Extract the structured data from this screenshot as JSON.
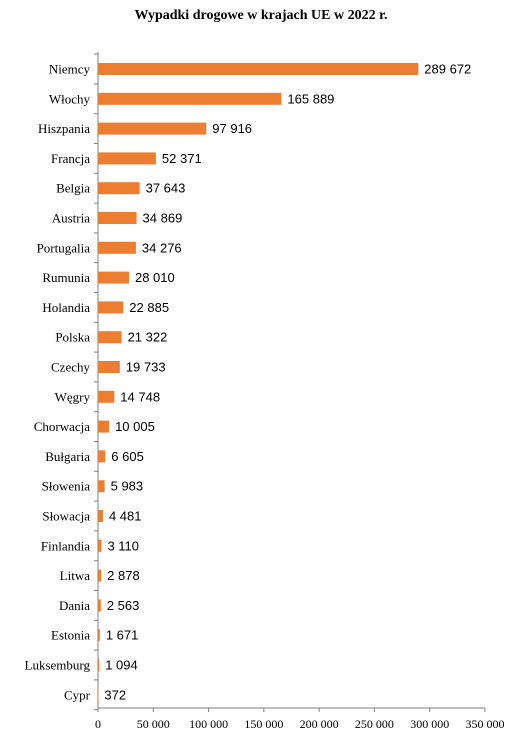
{
  "chart_data": {
    "type": "bar",
    "orientation": "horizontal",
    "title": "Wypadki drogowe w krajach UE w 2022 r.",
    "xlabel": "",
    "ylabel": "",
    "xlim": [
      0,
      350000
    ],
    "x_ticks": [
      0,
      50000,
      100000,
      150000,
      200000,
      250000,
      300000,
      350000
    ],
    "x_tick_labels": [
      "0",
      "50 000",
      "100 000",
      "150 000",
      "200 000",
      "250 000",
      "300 000",
      "350 000"
    ],
    "grid": false,
    "legend": "none",
    "bar_color": "#ED7D31",
    "categories": [
      "Niemcy",
      "Włochy",
      "Hiszpania",
      "Francja",
      "Belgia",
      "Austria",
      "Portugalia",
      "Rumunia",
      "Holandia",
      "Polska",
      "Czechy",
      "Węgry",
      "Chorwacja",
      "Bułgaria",
      "Słowenia",
      "Słowacja",
      "Finlandia",
      "Litwa",
      "Dania",
      "Estonia",
      "Luksemburg",
      "Cypr"
    ],
    "values": [
      289672,
      165889,
      97916,
      52371,
      37643,
      34869,
      34276,
      28010,
      22885,
      21322,
      19733,
      14748,
      10005,
      6605,
      5983,
      4481,
      3110,
      2878,
      2563,
      1671,
      1094,
      372
    ],
    "value_labels": [
      "289 672",
      "165 889",
      "97 916",
      "52 371",
      "37 643",
      "34 869",
      "34 276",
      "28 010",
      "22 885",
      "21 322",
      "19 733",
      "14 748",
      "10 005",
      "6 605",
      "5 983",
      "4 481",
      "3 110",
      "2 878",
      "2 563",
      "1 671",
      "1 094",
      "372"
    ]
  }
}
